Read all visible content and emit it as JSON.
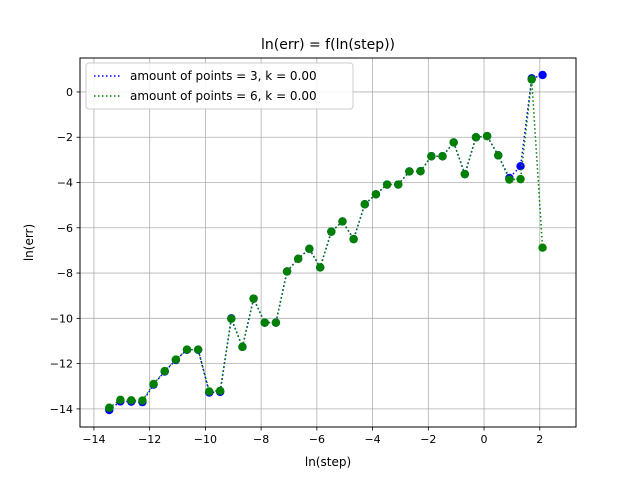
{
  "chart_data": {
    "type": "scatter",
    "title": "ln(err) = f(ln(step))",
    "xlabel": "ln(step)",
    "ylabel": "ln(err)",
    "xlim": [
      -14.5,
      3.3
    ],
    "ylim": [
      -14.8,
      1.5
    ],
    "xticks": [
      -14,
      -12,
      -10,
      -8,
      -6,
      -4,
      -2,
      0,
      2
    ],
    "yticks": [
      -14,
      -12,
      -10,
      -8,
      -6,
      -4,
      -2,
      0
    ],
    "grid": true,
    "legend_position": "upper-left",
    "series": [
      {
        "name": "amount of points = 3, k = 0.00",
        "color": "#0000ff",
        "x": [
          -13.45,
          -13.05,
          -12.66,
          -12.26,
          -11.86,
          -11.46,
          -11.06,
          -10.66,
          -10.26,
          -9.86,
          -9.47,
          -9.07,
          -8.67,
          -8.27,
          -7.87,
          -7.47,
          -7.07,
          -6.67,
          -6.27,
          -5.88,
          -5.48,
          -5.08,
          -4.68,
          -4.28,
          -3.88,
          -3.48,
          -3.08,
          -2.68,
          -2.28,
          -1.89,
          -1.49,
          -1.09,
          -0.69,
          -0.29,
          0.11,
          0.51,
          0.91,
          1.31,
          1.71,
          2.1
        ],
        "y": [
          -14.05,
          -13.67,
          -13.68,
          -13.7,
          -12.93,
          -12.35,
          -11.84,
          -11.39,
          -11.39,
          -13.28,
          -13.25,
          -10.0,
          -11.26,
          -9.13,
          -10.19,
          -10.19,
          -7.93,
          -7.37,
          -6.93,
          -7.75,
          -6.17,
          -5.72,
          -6.5,
          -4.96,
          -4.52,
          -4.09,
          -4.09,
          -3.51,
          -3.5,
          -2.84,
          -2.84,
          -2.23,
          -3.63,
          -2.0,
          -1.95,
          -2.8,
          -3.8,
          -3.28,
          0.6,
          0.75
        ]
      },
      {
        "name": "amount of points = 6, k = 0.00",
        "color": "#008000",
        "x": [
          -13.45,
          -13.05,
          -12.66,
          -12.26,
          -11.86,
          -11.46,
          -11.06,
          -10.66,
          -10.26,
          -9.86,
          -9.47,
          -9.07,
          -8.67,
          -8.27,
          -7.87,
          -7.47,
          -7.07,
          -6.67,
          -6.27,
          -5.88,
          -5.48,
          -5.08,
          -4.68,
          -4.28,
          -3.88,
          -3.48,
          -3.08,
          -2.68,
          -2.28,
          -1.89,
          -1.49,
          -1.09,
          -0.69,
          -0.29,
          0.11,
          0.51,
          0.91,
          1.31,
          1.71,
          2.1
        ],
        "y": [
          -13.95,
          -13.6,
          -13.62,
          -13.63,
          -12.9,
          -12.33,
          -11.82,
          -11.38,
          -11.38,
          -13.23,
          -13.2,
          -10.02,
          -11.26,
          -9.13,
          -10.19,
          -10.19,
          -7.93,
          -7.37,
          -6.93,
          -7.75,
          -6.17,
          -5.72,
          -6.5,
          -4.96,
          -4.52,
          -4.09,
          -4.09,
          -3.51,
          -3.5,
          -2.84,
          -2.84,
          -2.23,
          -3.63,
          -2.0,
          -1.95,
          -2.8,
          -3.87,
          -3.85,
          0.55,
          -6.88
        ]
      }
    ]
  }
}
